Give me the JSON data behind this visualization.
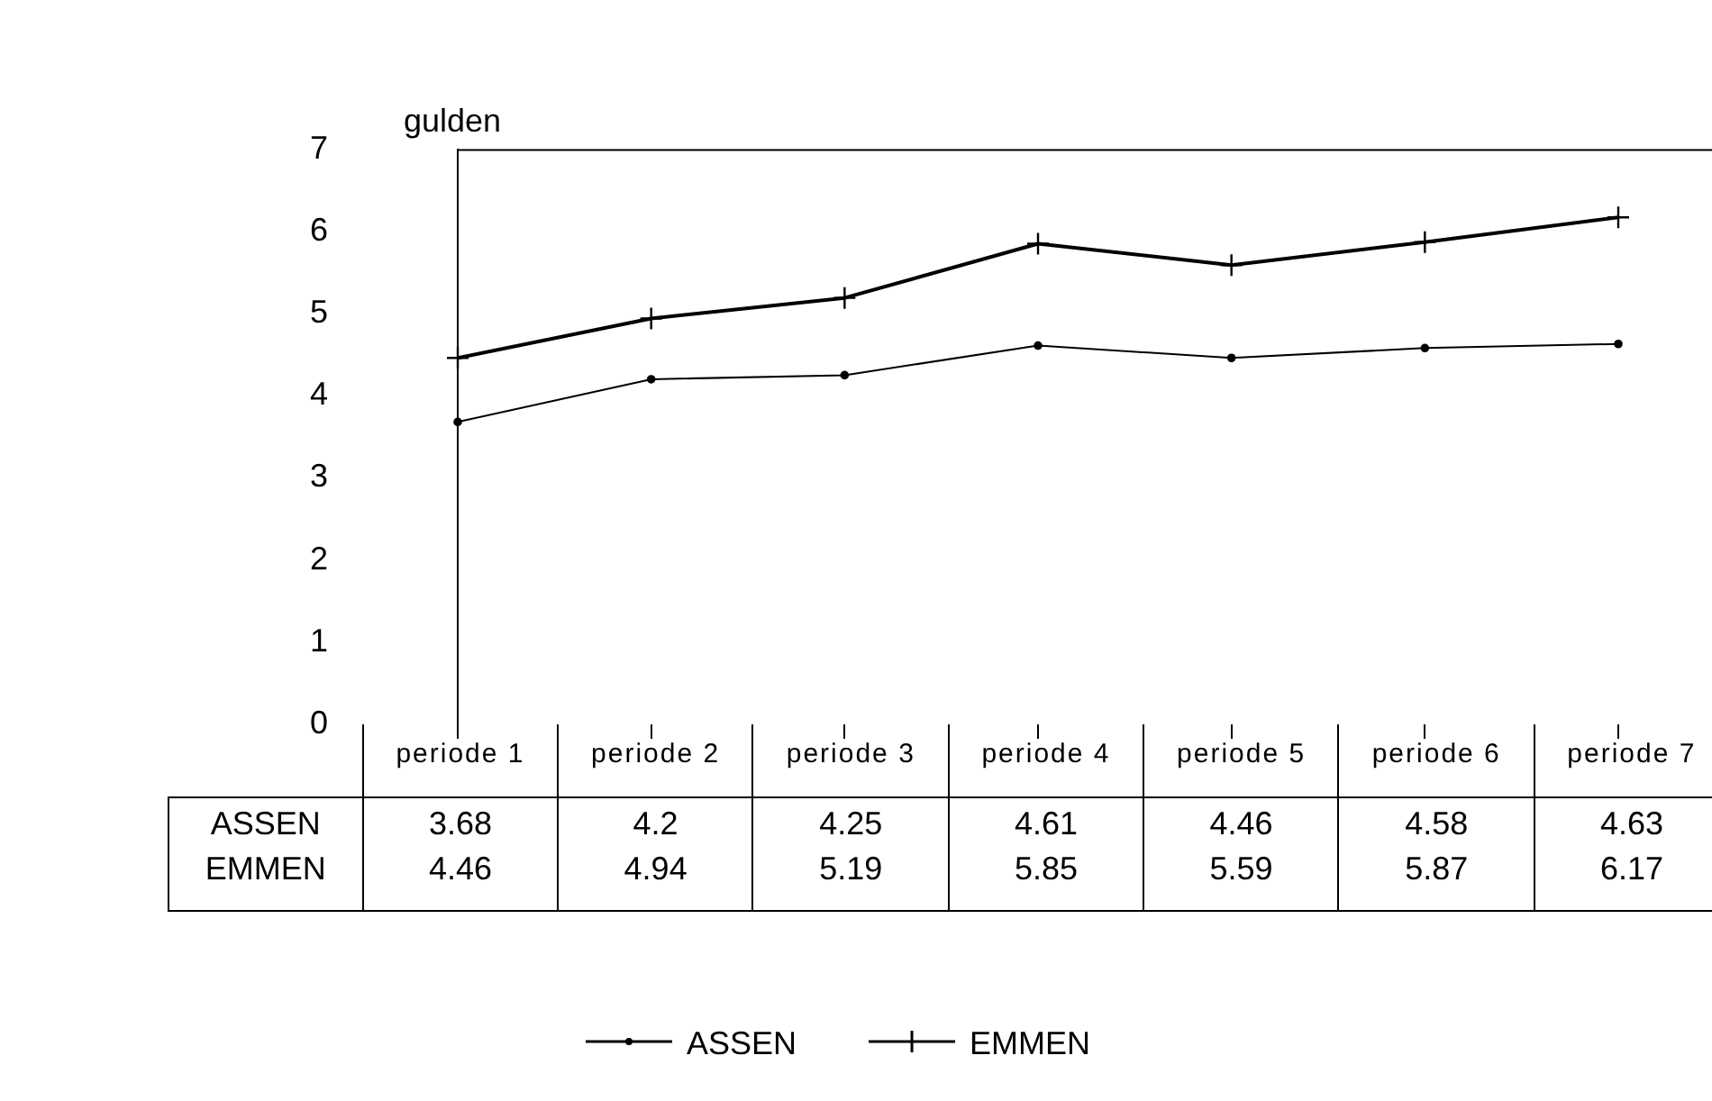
{
  "chart_data": {
    "type": "line",
    "ylabel": "gulden",
    "categories": [
      "periode 1",
      "periode 2",
      "periode 3",
      "periode 4",
      "periode 5",
      "periode 6",
      "periode 7"
    ],
    "series": [
      {
        "name": "ASSEN",
        "color": "#000000",
        "marker": "circle",
        "values": [
          3.68,
          4.2,
          4.25,
          4.61,
          4.46,
          4.58,
          4.63
        ]
      },
      {
        "name": "EMMEN",
        "color": "#000000",
        "marker": "cross",
        "values": [
          4.46,
          4.94,
          5.19,
          5.85,
          5.59,
          5.87,
          6.17
        ]
      }
    ],
    "ylim": [
      0,
      7
    ],
    "yticks": [
      0,
      1,
      2,
      3,
      4,
      5,
      6,
      7
    ],
    "grid": false,
    "legend": "bottom",
    "data_labels": true
  }
}
